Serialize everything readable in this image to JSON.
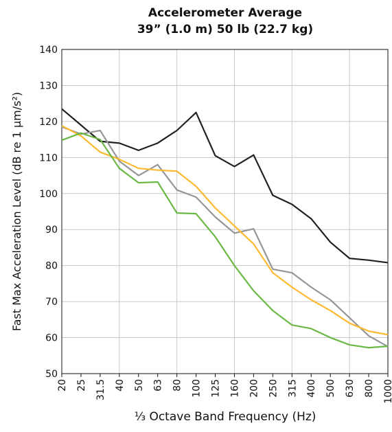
{
  "chart_data": {
    "type": "line",
    "title": [
      "Accelerometer Average",
      "39” (1.0 m) 50 lb (22.7 kg)"
    ],
    "x_label": "⅓ Octave Band Frequency (Hz)",
    "y_label": "Fast Max Acceleration Level (dB re 1 μm/s²)",
    "categories": [
      "20",
      "25",
      "31.5",
      "40",
      "50",
      "63",
      "80",
      "100",
      "125",
      "160",
      "200",
      "250",
      "315",
      "400",
      "500",
      "630",
      "800",
      "1000"
    ],
    "series": [
      {
        "color": "#231f20",
        "values": [
          123.5,
          119,
          114.5,
          114,
          112,
          114,
          117.5,
          122.5,
          110.5,
          107.5,
          110.7,
          99.5,
          97,
          93,
          86.5,
          82,
          81.5,
          80.8
        ]
      },
      {
        "color": "#939598",
        "values": [
          118.5,
          116.5,
          117.5,
          109,
          105,
          108,
          101,
          99,
          93.5,
          89,
          90.2,
          79,
          78,
          74,
          70.5,
          65.5,
          60.5,
          57.5
        ]
      },
      {
        "color": "#fdb92e",
        "values": [
          118.8,
          116,
          111.5,
          109.5,
          107,
          106.5,
          106.2,
          102,
          96,
          91,
          86,
          78,
          74,
          70.5,
          67.5,
          64,
          61.8,
          60.8
        ]
      },
      {
        "color": "#6ab844",
        "values": [
          114.8,
          116.8,
          115,
          107,
          103,
          103.2,
          94.6,
          94.4,
          88,
          80,
          73,
          67.5,
          63.5,
          62.5,
          60,
          58,
          57.2,
          57.6
        ]
      }
    ],
    "ylim": [
      50,
      140
    ],
    "yticks": [
      50,
      60,
      70,
      80,
      90,
      100,
      110,
      120,
      130,
      140
    ],
    "grid": true
  }
}
